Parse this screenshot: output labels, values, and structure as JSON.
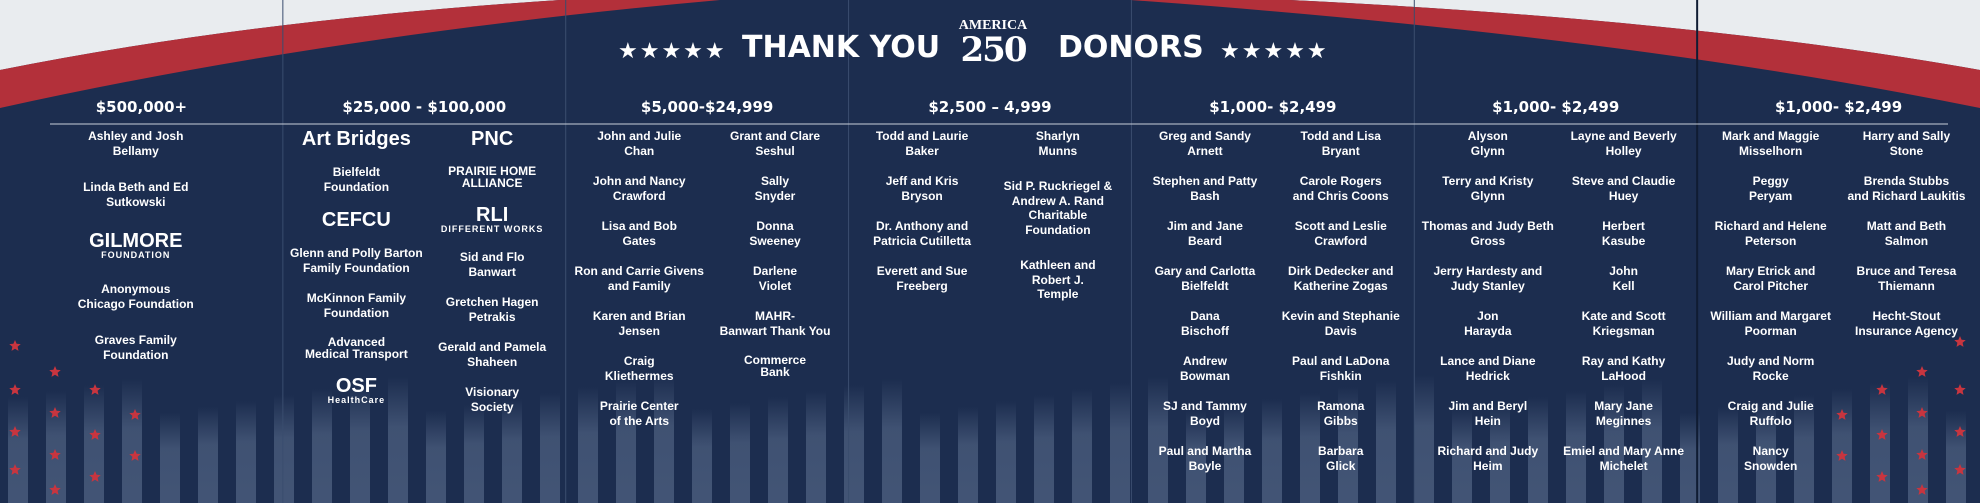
{
  "header": {
    "stars_left": "★★★★★",
    "title_left": "THANK YOU",
    "logo_top": "AMERICA",
    "logo_number": "250",
    "title_right": "DONORS",
    "stars_right": "★★★★★"
  },
  "panels": [
    {
      "heading": "$500,000+",
      "columns": [
        [
          {
            "text": "Ashley and Josh\nBellamy"
          },
          {
            "text": "Linda Beth and Ed\nSutkowski"
          },
          {
            "kind": "logo",
            "text": "GILMORE",
            "subtext": "FOUNDATION"
          },
          {
            "text": "Anonymous\nChicago Foundation"
          },
          {
            "text": "Graves Family\nFoundation"
          }
        ]
      ]
    },
    {
      "heading": "$25,000 - $100,000",
      "columns": [
        [
          {
            "kind": "logo",
            "text": "Art Bridges"
          },
          {
            "text": "Bielfeldt\nFoundation"
          },
          {
            "kind": "logo",
            "text": "CEFCU"
          },
          {
            "text": "Glenn and Polly Barton\nFamily Foundation"
          },
          {
            "text": "McKinnon Family\nFoundation"
          },
          {
            "kind": "logo",
            "text": "Advanced\nMedical Transport"
          },
          {
            "kind": "logo",
            "text": "OSF",
            "subtext": "HealthCare"
          }
        ],
        [
          {
            "kind": "logo",
            "text": "PNC"
          },
          {
            "kind": "logo",
            "text": "PRAIRIE HOME\nALLIANCE"
          },
          {
            "kind": "logo",
            "text": "RLI",
            "subtext": "DIFFERENT WORKS"
          },
          {
            "text": "Sid and Flo\nBanwart"
          },
          {
            "text": "Gretchen Hagen\nPetrakis"
          },
          {
            "text": "Gerald and Pamela\nShaheen"
          },
          {
            "text": "Visionary\nSociety"
          }
        ]
      ]
    },
    {
      "heading": "$5,000-$24,999",
      "columns": [
        [
          {
            "text": "John and Julie\nChan"
          },
          {
            "text": "John and Nancy\nCrawford"
          },
          {
            "text": "Lisa and Bob\nGates"
          },
          {
            "text": "Ron and Carrie Givens\nand Family"
          },
          {
            "text": "Karen and Brian\nJensen"
          },
          {
            "text": "Craig\nKliethermes"
          },
          {
            "text": "Prairie Center\nof the Arts"
          }
        ],
        [
          {
            "text": "Grant and Clare\nSeshul"
          },
          {
            "text": "Sally\nSnyder"
          },
          {
            "text": "Donna\nSweeney"
          },
          {
            "text": "Darlene\nViolet"
          },
          {
            "text": "MAHR-\nBanwart Thank You"
          },
          {
            "kind": "logo",
            "text": "Commerce\nBank"
          }
        ]
      ]
    },
    {
      "heading": "$2,500 – 4,999",
      "columns": [
        [
          {
            "text": "Todd and Laurie\nBaker"
          },
          {
            "text": "Jeff and Kris\nBryson"
          },
          {
            "text": "Dr. Anthony and\nPatricia Cutilletta"
          },
          {
            "text": "Everett and Sue\nFreeberg"
          }
        ],
        [
          {
            "text": "Sharlyn\nMunns"
          },
          {
            "text": "Sid P. Ruckriegel &\nAndrew A. Rand\nCharitable\nFoundation"
          },
          {
            "text": "Kathleen and\nRobert J.\nTemple"
          }
        ]
      ]
    },
    {
      "heading": "$1,000- $2,499",
      "columns": [
        [
          {
            "text": "Greg and Sandy\nArnett"
          },
          {
            "text": "Stephen and Patty\nBash"
          },
          {
            "text": "Jim and Jane\nBeard"
          },
          {
            "text": "Gary and Carlotta\nBielfeldt"
          },
          {
            "text": "Dana\nBischoff"
          },
          {
            "text": "Andrew\nBowman"
          },
          {
            "text": "SJ and Tammy\nBoyd"
          },
          {
            "text": "Paul and Martha\nBoyle"
          }
        ],
        [
          {
            "text": "Todd and Lisa\nBryant"
          },
          {
            "text": "Carole Rogers\nand Chris Coons"
          },
          {
            "text": "Scott and Leslie\nCrawford"
          },
          {
            "text": "Dirk Dedecker and\nKatherine Zogas"
          },
          {
            "text": "Kevin and Stephanie\nDavis"
          },
          {
            "text": "Paul and LaDona\nFishkin"
          },
          {
            "text": "Ramona\nGibbs"
          },
          {
            "text": "Barbara\nGlick"
          }
        ]
      ]
    },
    {
      "heading": "$1,000- $2,499",
      "columns": [
        [
          {
            "text": "Alyson\nGlynn"
          },
          {
            "text": "Terry and Kristy\nGlynn"
          },
          {
            "text": "Thomas and Judy Beth\nGross"
          },
          {
            "text": "Jerry Hardesty and\nJudy Stanley"
          },
          {
            "text": "Jon\nHarayda"
          },
          {
            "text": "Lance and Diane\nHedrick"
          },
          {
            "text": "Jim and Beryl\nHein"
          },
          {
            "text": "Richard and Judy\nHeim"
          }
        ],
        [
          {
            "text": "Layne and Beverly\nHolley"
          },
          {
            "text": "Steve and Claudie\nHuey"
          },
          {
            "text": "Herbert\nKasube"
          },
          {
            "text": "John\nKell"
          },
          {
            "text": "Kate and Scott\nKriegsman"
          },
          {
            "text": "Ray and Kathy\nLaHood"
          },
          {
            "text": "Mary Jane\nMeginnes"
          },
          {
            "text": "Emiel and Mary Anne\nMichelet"
          }
        ]
      ]
    },
    {
      "heading": "$1,000- $2,499",
      "columns": [
        [
          {
            "text": "Mark and Maggie\nMisselhorn"
          },
          {
            "text": "Peggy\nPeryam"
          },
          {
            "text": "Richard and Helene\nPeterson"
          },
          {
            "text": "Mary Etrick and\nCarol Pitcher"
          },
          {
            "text": "William and Margaret\nPoorman"
          },
          {
            "text": "Judy and Norm\nRocke"
          },
          {
            "text": "Craig and Julie\nRuffolo"
          },
          {
            "text": "Nancy\nSnowden"
          }
        ],
        [
          {
            "text": "Harry and Sally\nStone"
          },
          {
            "text": "Brenda Stubbs\nand Richard Laukitis"
          },
          {
            "text": "Matt and Beth\nSalmon"
          },
          {
            "text": "Bruce and Teresa\nThiemann"
          },
          {
            "text": "Hecht-Stout\nInsurance Agency"
          }
        ]
      ]
    }
  ]
}
